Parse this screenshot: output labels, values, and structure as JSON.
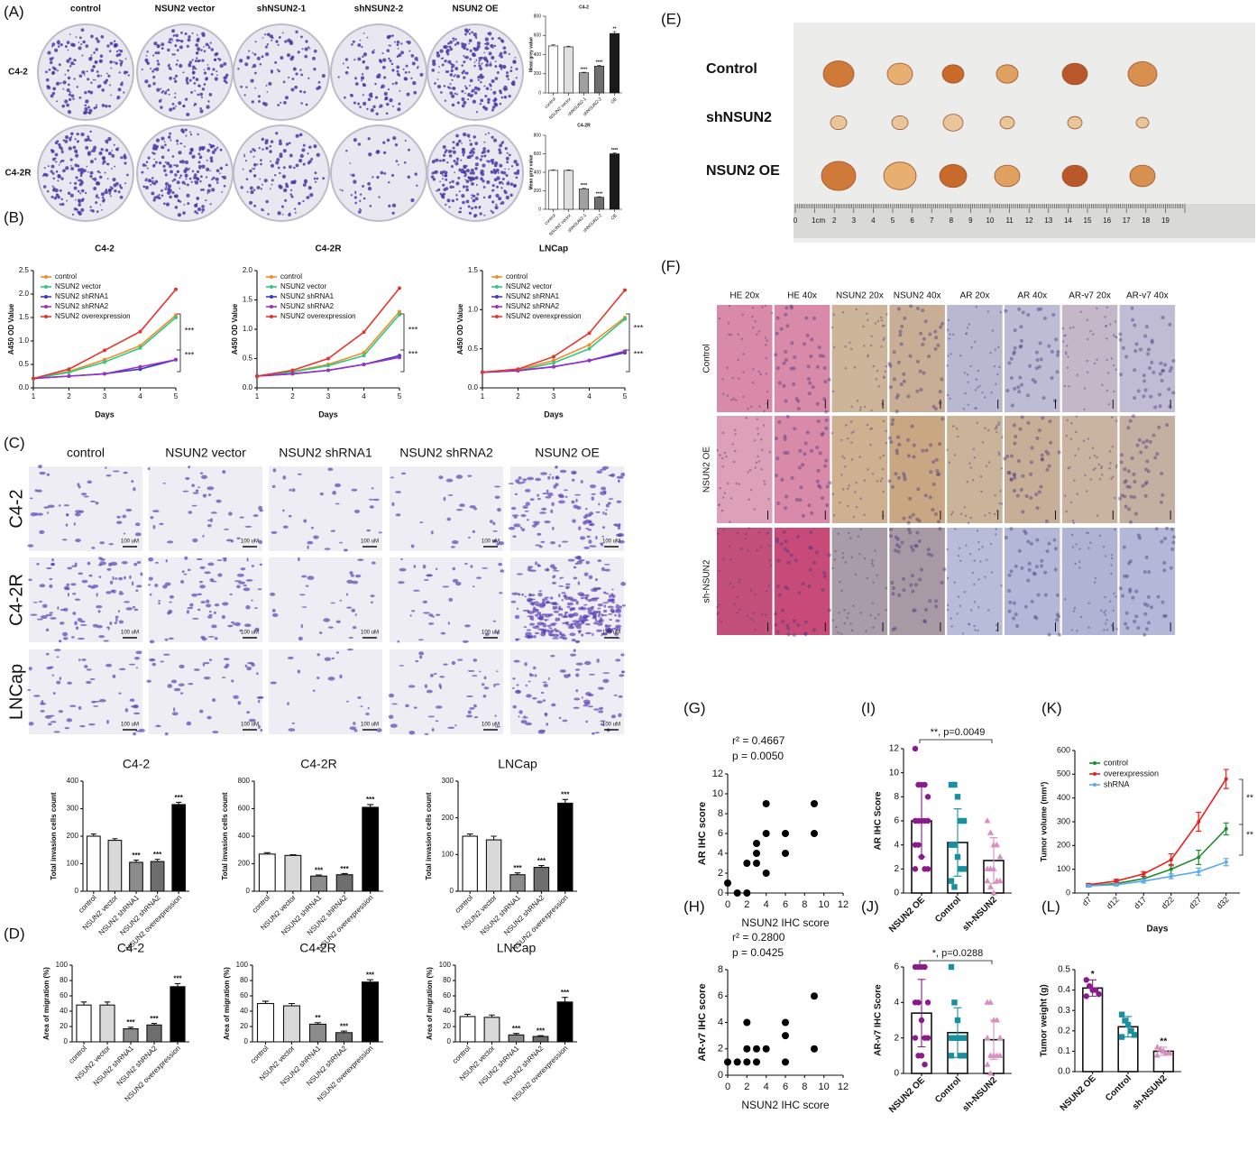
{
  "figure": {
    "panel_letters": [
      "(A)",
      "(B)",
      "(C)",
      "(D)",
      "(E)",
      "(F)",
      "(G)",
      "(H)",
      "(I)",
      "(J)",
      "(K)",
      "(L)"
    ],
    "a_columns": [
      "control",
      "NSUN2 vector",
      "shNSUN2-1",
      "shNSUN2-2",
      "NSUN2 OE"
    ],
    "a_rows": [
      "C4-2",
      "C4-2R"
    ],
    "c_columns": [
      "control",
      "NSUN2 vector",
      "NSUN2 shRNA1",
      "NSUN2 shRNA2",
      "NSUN2 OE"
    ],
    "c_rows": [
      "C4-2",
      "C4-2R",
      "LNCap"
    ],
    "c_scale": "100 uM",
    "e_rows": [
      "Control",
      "shNSUN2",
      "NSUN2 OE"
    ],
    "e_ruler": [
      "0",
      "1cm",
      "2",
      "3",
      "4",
      "5",
      "6",
      "7",
      "8",
      "9",
      "10",
      "11",
      "12",
      "13",
      "14",
      "15",
      "16",
      "17",
      "18",
      "19"
    ],
    "f_columns": [
      "HE 20x",
      "HE 40x",
      "NSUN2 20x",
      "NSUN2 40x",
      "AR 20x",
      "AR 40x",
      "AR-v7 20x",
      "AR-v7 40x"
    ],
    "f_rows": [
      "Control",
      "NSUN2 OE",
      "sh-NSUN2"
    ]
  },
  "chart_data": [
    {
      "type": "bar",
      "title": "C4-2",
      "ylabel": "Mean grey value",
      "categories": [
        "control",
        "NSUN2 vector",
        "shNSUN2-1",
        "shNSUN2-2",
        "OE"
      ],
      "values": [
        490,
        480,
        210,
        280,
        620
      ],
      "errors": [
        12,
        8,
        6,
        8,
        20
      ],
      "colors": [
        "#ffffff",
        "#e0e0e0",
        "#a0a0a0",
        "#6e6e6e",
        "#1a1a1a"
      ],
      "significance": [
        null,
        null,
        "****",
        "****",
        "**"
      ],
      "ylim": [
        0,
        800
      ],
      "yticks": [
        0,
        200,
        400,
        600,
        800
      ]
    },
    {
      "type": "bar",
      "title": "C4-2R",
      "ylabel": "Mean grey value",
      "categories": [
        "control",
        "NSUN2 vector",
        "shNSUN2-1",
        "shNSUN2-2",
        "OE"
      ],
      "values": [
        420,
        420,
        220,
        130,
        600
      ],
      "errors": [
        8,
        6,
        8,
        6,
        10
      ],
      "colors": [
        "#ffffff",
        "#e0e0e0",
        "#a0a0a0",
        "#6e6e6e",
        "#1a1a1a"
      ],
      "significance": [
        null,
        null,
        "****",
        "****",
        "****"
      ],
      "ylim": [
        0,
        800
      ],
      "yticks": [
        0,
        200,
        400,
        600,
        800
      ]
    },
    {
      "type": "line",
      "title": "C4-2",
      "ylabel": "A450 OD Value",
      "xlabel": "Days",
      "x": [
        1,
        2,
        3,
        4,
        5
      ],
      "xlim": [
        1,
        5
      ],
      "xticks": [
        1,
        2,
        3,
        4,
        5
      ],
      "ylim": [
        0,
        2.5
      ],
      "yticks": [
        {
          "value": 0,
          "label": "0.0"
        },
        0.5,
        {
          "value": 1,
          "label": "1.0"
        },
        1.5,
        {
          "value": 2,
          "label": "2.0"
        },
        2.5
      ],
      "legend": "upper left",
      "annotations": [
        "***",
        "***"
      ],
      "series": [
        {
          "name": "control",
          "color": "#f28c28",
          "values": [
            0.2,
            0.35,
            0.6,
            0.9,
            1.55
          ]
        },
        {
          "name": "NSUN2 vector",
          "color": "#2cc985",
          "values": [
            0.2,
            0.33,
            0.55,
            0.85,
            1.5
          ]
        },
        {
          "name": "NSUN2 shRNA1",
          "color": "#3a3acb",
          "values": [
            0.2,
            0.25,
            0.3,
            0.4,
            0.6
          ]
        },
        {
          "name": "NSUN2 shRNA2",
          "color": "#9b30c8",
          "values": [
            0.2,
            0.25,
            0.3,
            0.45,
            0.6
          ]
        },
        {
          "name": "NSUN2 overexpression",
          "color": "#e8342c",
          "values": [
            0.2,
            0.4,
            0.8,
            1.2,
            2.1
          ]
        }
      ]
    },
    {
      "type": "line",
      "title": "C4-2R",
      "ylabel": "A450 OD Value",
      "xlabel": "Days",
      "x": [
        1,
        2,
        3,
        4,
        5
      ],
      "xlim": [
        1,
        5
      ],
      "xticks": [
        1,
        2,
        3,
        4,
        5
      ],
      "ylim": [
        0,
        2
      ],
      "yticks": [
        {
          "value": 0,
          "label": "0.0"
        },
        0.5,
        {
          "value": 1,
          "label": "1.0"
        },
        1.5,
        {
          "value": 2,
          "label": "2.0"
        }
      ],
      "legend": "upper left",
      "annotations": [
        "***",
        "***"
      ],
      "series": [
        {
          "name": "control",
          "color": "#f28c28",
          "values": [
            0.2,
            0.28,
            0.4,
            0.6,
            1.3
          ]
        },
        {
          "name": "NSUN2 vector",
          "color": "#2cc985",
          "values": [
            0.2,
            0.27,
            0.38,
            0.55,
            1.25
          ]
        },
        {
          "name": "NSUN2 shRNA1",
          "color": "#3a3acb",
          "values": [
            0.2,
            0.24,
            0.3,
            0.4,
            0.55
          ]
        },
        {
          "name": "NSUN2 shRNA2",
          "color": "#9b30c8",
          "values": [
            0.2,
            0.24,
            0.3,
            0.4,
            0.52
          ]
        },
        {
          "name": "NSUN2 overexpression",
          "color": "#e8342c",
          "values": [
            0.2,
            0.3,
            0.5,
            0.95,
            1.7
          ]
        }
      ]
    },
    {
      "type": "line",
      "title": "LNCap",
      "ylabel": "A450 OD Value",
      "xlabel": "Days",
      "x": [
        1,
        2,
        3,
        4,
        5
      ],
      "xlim": [
        1,
        5
      ],
      "xticks": [
        1,
        2,
        3,
        4,
        5
      ],
      "ylim": [
        0,
        1.5
      ],
      "yticks": [
        {
          "value": 0,
          "label": "0.0"
        },
        0.5,
        {
          "value": 1,
          "label": "1.0"
        },
        1.5
      ],
      "legend": "upper left",
      "annotations": [
        "***",
        "***"
      ],
      "series": [
        {
          "name": "control",
          "color": "#f28c28",
          "values": [
            0.2,
            0.23,
            0.35,
            0.55,
            0.9
          ]
        },
        {
          "name": "NSUN2 vector",
          "color": "#2cc985",
          "values": [
            0.2,
            0.22,
            0.32,
            0.5,
            0.88
          ]
        },
        {
          "name": "NSUN2 shRNA1",
          "color": "#3a3acb",
          "values": [
            0.2,
            0.22,
            0.27,
            0.35,
            0.45
          ]
        },
        {
          "name": "NSUN2 shRNA2",
          "color": "#9b30c8",
          "values": [
            0.2,
            0.22,
            0.27,
            0.35,
            0.47
          ]
        },
        {
          "name": "NSUN2 overexpression",
          "color": "#e8342c",
          "values": [
            0.2,
            0.24,
            0.4,
            0.7,
            1.25
          ]
        }
      ]
    },
    {
      "type": "bar",
      "title": "C4-2",
      "ylabel": "Total invasion cells count",
      "categories": [
        "control",
        "NSUN2 vector",
        "NSUN2 shRNA1",
        "NSUN2 shRNA2",
        "NSUN2 overexpression"
      ],
      "values": [
        200,
        185,
        105,
        108,
        315
      ],
      "errors": [
        8,
        6,
        8,
        8,
        8
      ],
      "colors": [
        "#ffffff",
        "#d9d9d9",
        "#8c8c8c",
        "#6e6e6e",
        "#000000"
      ],
      "significance": [
        null,
        null,
        "***",
        "***",
        "***"
      ],
      "ylim": [
        0,
        400
      ],
      "yticks": [
        0,
        100,
        200,
        300,
        400
      ]
    },
    {
      "type": "bar",
      "title": "C4-2R",
      "ylabel": "Total invasion cells count",
      "categories": [
        "control",
        "NSUN2 vector",
        "NSUN2 shRNA1",
        "NSUN2 shRNA2",
        "NSUN2 overexpression"
      ],
      "values": [
        270,
        260,
        110,
        120,
        610
      ],
      "errors": [
        10,
        5,
        8,
        8,
        20
      ],
      "colors": [
        "#ffffff",
        "#d9d9d9",
        "#8c8c8c",
        "#6e6e6e",
        "#000000"
      ],
      "significance": [
        null,
        null,
        "***",
        "***",
        "***"
      ],
      "ylim": [
        0,
        800
      ],
      "yticks": [
        0,
        200,
        400,
        600,
        800
      ]
    },
    {
      "type": "bar",
      "title": "LNCap",
      "ylabel": "Total invasion cells count",
      "categories": [
        "control",
        "NSUN2 vector",
        "NSUN2 shRNA1",
        "NSUN2 shRNA2",
        "NSUN2 overexpression"
      ],
      "values": [
        150,
        140,
        45,
        65,
        240
      ],
      "errors": [
        6,
        10,
        5,
        5,
        10
      ],
      "colors": [
        "#ffffff",
        "#d9d9d9",
        "#8c8c8c",
        "#6e6e6e",
        "#000000"
      ],
      "significance": [
        null,
        null,
        "***",
        "***",
        "***"
      ],
      "ylim": [
        0,
        300
      ],
      "yticks": [
        0,
        100,
        200,
        300
      ]
    },
    {
      "type": "bar",
      "title": "C4-2",
      "ylabel": "Area of migration (%)",
      "categories": [
        "control",
        "NSUN2 vector",
        "NSUN2 shRNA1",
        "NSUN2 shRNA2",
        "NSUN2 overexpression"
      ],
      "values": [
        48,
        48,
        17,
        22,
        72
      ],
      "errors": [
        4,
        4,
        2,
        2,
        4
      ],
      "colors": [
        "#ffffff",
        "#d9d9d9",
        "#8c8c8c",
        "#6e6e6e",
        "#000000"
      ],
      "significance": [
        null,
        null,
        "***",
        "***",
        "***"
      ],
      "ylim": [
        0,
        100
      ],
      "yticks": [
        0,
        20,
        40,
        60,
        80,
        100
      ]
    },
    {
      "type": "bar",
      "title": "C4-2R",
      "ylabel": "Area of migration (%)",
      "categories": [
        "control",
        "NSUN2 vector",
        "NSUN2 shRNA1",
        "NSUN2 shRNA2",
        "NSUN2 overexpression"
      ],
      "values": [
        50,
        47,
        23,
        12,
        78
      ],
      "errors": [
        3,
        3,
        2,
        2,
        3
      ],
      "colors": [
        "#ffffff",
        "#d9d9d9",
        "#8c8c8c",
        "#6e6e6e",
        "#000000"
      ],
      "significance": [
        null,
        null,
        "**",
        "***",
        "***"
      ],
      "ylim": [
        0,
        100
      ],
      "yticks": [
        0,
        20,
        40,
        60,
        80,
        100
      ]
    },
    {
      "type": "bar",
      "title": "LNCap",
      "ylabel": "Area of migration (%)",
      "categories": [
        "control",
        "NSUN2 vector",
        "NSUN2 shRNA1",
        "NSUN2 shRNA2",
        "NSUN2 overexpression"
      ],
      "values": [
        33,
        32,
        9,
        7,
        52
      ],
      "errors": [
        3,
        3,
        2,
        1,
        6
      ],
      "colors": [
        "#ffffff",
        "#d9d9d9",
        "#8c8c8c",
        "#6e6e6e",
        "#000000"
      ],
      "significance": [
        null,
        null,
        "***",
        "***",
        "***"
      ],
      "ylim": [
        0,
        100
      ],
      "yticks": [
        0,
        20,
        40,
        60,
        80,
        100
      ]
    },
    {
      "type": "scatter",
      "xlabel": "NSUN2 IHC score",
      "ylabel": "AR IHC score",
      "annotations": [
        "r² = 0.4667",
        "p = 0.0050"
      ],
      "x": [
        0,
        1,
        2,
        2,
        3,
        3,
        3,
        4,
        4,
        4,
        6,
        6,
        9,
        9
      ],
      "y": [
        1,
        0,
        0,
        3,
        3,
        4,
        5,
        2,
        6,
        9,
        4,
        6,
        6,
        9
      ],
      "color": "#000000",
      "xlim": [
        0,
        12
      ],
      "xticks": [
        0,
        2,
        4,
        6,
        8,
        10,
        12
      ],
      "ylim": [
        0,
        12
      ],
      "yticks": [
        0,
        2,
        4,
        6,
        8,
        10,
        12
      ]
    },
    {
      "type": "scatter",
      "xlabel": "NSUN2 IHC score",
      "ylabel": "AR-v7 IHC score",
      "annotations": [
        "r² = 0.2800",
        "p = 0.0425"
      ],
      "x": [
        0,
        1,
        2,
        2,
        2,
        3,
        3,
        4,
        6,
        6,
        6,
        9,
        9
      ],
      "y": [
        1,
        1,
        1,
        4,
        2,
        1,
        2,
        2,
        1,
        3,
        4,
        6,
        2
      ],
      "color": "#000000",
      "xlim": [
        0,
        12
      ],
      "xticks": [
        0,
        2,
        4,
        6,
        8,
        10,
        12
      ],
      "ylim": [
        0,
        8
      ],
      "yticks": [
        0,
        2,
        4,
        6,
        8
      ]
    },
    {
      "type": "bar",
      "ylabel": "AR IHC Score",
      "annotations": [
        "**, p=0.0049"
      ],
      "categories": [
        "NSUN2 OE",
        "Control",
        "sh-NSUN2"
      ],
      "values": [
        6,
        4.2,
        2.7
      ],
      "errors": [
        3,
        2.8,
        1.9
      ],
      "colors": [
        "#ffffff",
        "#ffffff",
        "#ffffff"
      ],
      "point_colors": [
        "#8b1a8b",
        "#1a8fa0",
        "#d98fc0"
      ],
      "markers": [
        "circle",
        "square",
        "triangle"
      ],
      "points": [
        [
          12,
          9,
          9,
          9,
          8,
          6,
          6,
          6,
          6,
          6,
          4,
          4,
          3,
          2,
          2,
          2
        ],
        [
          9,
          9,
          8,
          6,
          6,
          4,
          4,
          3,
          2,
          2,
          1,
          0.5
        ],
        [
          6,
          5,
          4,
          4,
          3,
          2,
          2,
          2,
          1,
          1,
          1,
          0.5,
          0
        ]
      ],
      "ylim": [
        0,
        12
      ],
      "yticks": [
        0,
        2,
        4,
        6,
        8,
        10,
        12
      ]
    },
    {
      "type": "bar",
      "ylabel": "AR-v7 IHC Score",
      "annotations": [
        "*, p=0.0288"
      ],
      "categories": [
        "NSUN2 OE",
        "Control",
        "sh-NSUN2"
      ],
      "values": [
        3.4,
        2.3,
        1.9
      ],
      "errors": [
        1.9,
        1.4,
        1.1
      ],
      "colors": [
        "#ffffff",
        "#ffffff",
        "#ffffff"
      ],
      "point_colors": [
        "#8b1a8b",
        "#1a8fa0",
        "#d98fc0"
      ],
      "markers": [
        "circle",
        "square",
        "triangle"
      ],
      "points": [
        [
          6,
          6,
          6,
          6,
          4,
          4,
          4,
          3,
          2,
          2,
          2,
          1,
          1,
          0.5
        ],
        [
          6,
          4,
          3,
          2,
          2,
          2,
          2,
          2,
          1,
          1,
          1
        ],
        [
          4,
          4,
          3,
          3,
          2,
          2,
          1,
          1,
          1,
          1,
          0.5,
          0
        ]
      ],
      "ylim": [
        0,
        6
      ],
      "yticks": [
        0,
        2,
        4,
        6
      ]
    },
    {
      "type": "line",
      "ylabel": "Tumor volume (mm³)",
      "xlabel": "Days",
      "categories": [
        "d7",
        "d12",
        "d17",
        "d22",
        "d27",
        "d32"
      ],
      "ylim": [
        0,
        600
      ],
      "yticks": [
        0,
        100,
        200,
        300,
        400,
        500,
        600
      ],
      "legend": "upper left",
      "annotations": [
        "**",
        "**"
      ],
      "series": [
        {
          "name": "control",
          "color": "#1e8c2e",
          "values": [
            30,
            40,
            60,
            100,
            150,
            270
          ],
          "errors": [
            5,
            8,
            10,
            20,
            30,
            25
          ]
        },
        {
          "name": "overexpression",
          "color": "#e8201c",
          "values": [
            35,
            50,
            80,
            140,
            300,
            480
          ],
          "errors": [
            5,
            8,
            10,
            25,
            40,
            40
          ]
        },
        {
          "name": "shRNA",
          "color": "#5aaaf0",
          "values": [
            30,
            35,
            50,
            70,
            90,
            130
          ],
          "errors": [
            5,
            5,
            8,
            10,
            15,
            15
          ]
        }
      ]
    },
    {
      "type": "bar",
      "ylabel": "Tumor weight (g)",
      "categories": [
        "NSUN2 OE",
        "Control",
        "sh-NSUN2"
      ],
      "values": [
        0.41,
        0.22,
        0.1
      ],
      "errors": [
        0.04,
        0.05,
        0.02
      ],
      "colors": [
        "#ffffff",
        "#ffffff",
        "#ffffff"
      ],
      "point_colors": [
        "#8b1a8b",
        "#1a8fa0",
        "#d98fc0"
      ],
      "markers": [
        "circle",
        "square",
        "triangle"
      ],
      "significance": [
        "*",
        null,
        "**"
      ],
      "points": [
        [
          0.45,
          0.42,
          0.4,
          0.4,
          0.38,
          0.37
        ],
        [
          0.28,
          0.25,
          0.23,
          0.2,
          0.18,
          0.17
        ],
        [
          0.12,
          0.11,
          0.1,
          0.09,
          0.09,
          0.08
        ]
      ],
      "ylim": [
        0,
        0.5
      ],
      "yticks": [
        {
          "value": 0,
          "label": "0.0"
        },
        0.1,
        0.2,
        0.3,
        0.4,
        0.5
      ]
    }
  ]
}
